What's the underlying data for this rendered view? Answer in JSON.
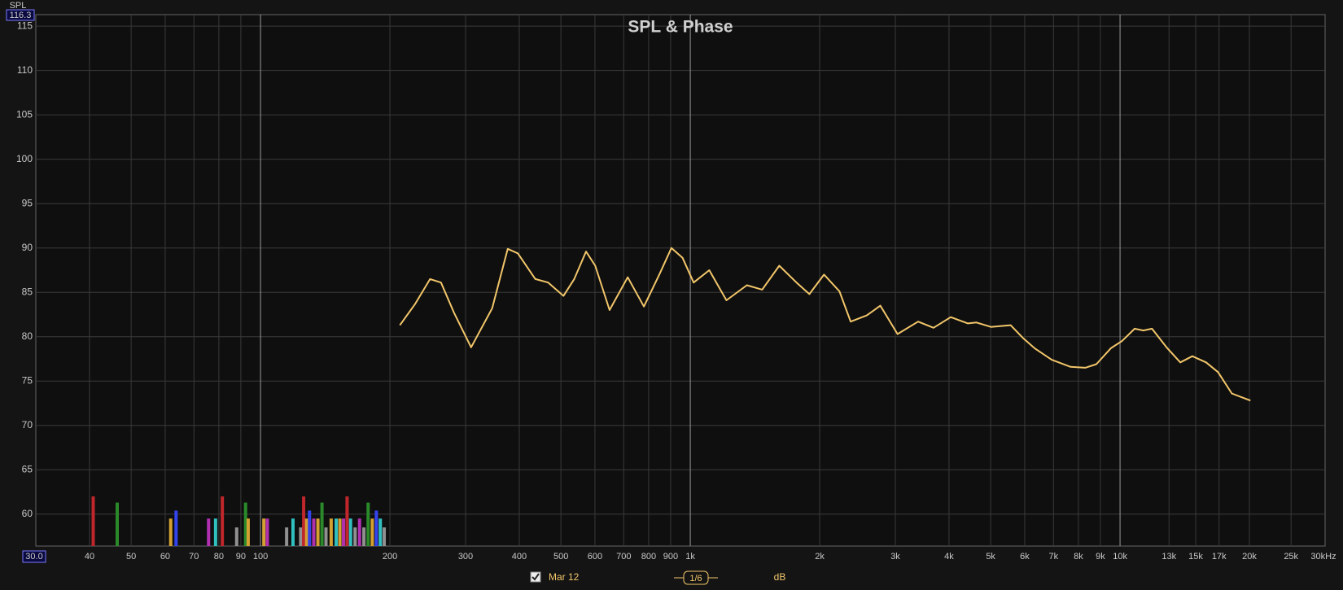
{
  "chart_data": {
    "type": "line",
    "title": "SPL & Phase",
    "y_axis_label": "SPL",
    "log_x": true,
    "grid": true,
    "xlim": [
      30,
      30000
    ],
    "ylim": [
      56.4,
      116.3
    ],
    "xticks": [
      {
        "value": 30,
        "label": "30.0"
      },
      40,
      50,
      60,
      70,
      80,
      90,
      100,
      200,
      300,
      400,
      500,
      600,
      700,
      800,
      900,
      {
        "value": 1000,
        "label": "1k"
      },
      {
        "value": 2000,
        "label": "2k"
      },
      {
        "value": 3000,
        "label": "3k"
      },
      {
        "value": 4000,
        "label": "4k"
      },
      {
        "value": 5000,
        "label": "5k"
      },
      {
        "value": 6000,
        "label": "6k"
      },
      {
        "value": 7000,
        "label": "7k"
      },
      {
        "value": 8000,
        "label": "8k"
      },
      {
        "value": 9000,
        "label": "9k"
      },
      {
        "value": 10000,
        "label": "10k"
      },
      {
        "value": 13000,
        "label": "13k"
      },
      {
        "value": 15000,
        "label": "15k"
      },
      {
        "value": 17000,
        "label": "17k"
      },
      {
        "value": 20000,
        "label": "20k"
      },
      {
        "value": 25000,
        "label": "25k"
      },
      {
        "value": 30000,
        "label": "30kHz"
      }
    ],
    "yticks": [
      60,
      65,
      70,
      75,
      80,
      85,
      90,
      95,
      100,
      105,
      110,
      115
    ],
    "series": [
      {
        "name": "Mar 12",
        "color": "#f2c66a",
        "x": [
          211,
          229,
          248,
          263,
          282,
          309,
          346,
          376,
          397,
          436,
          467,
          507,
          537,
          572,
          601,
          649,
          715,
          780,
          847,
          904,
          959,
          1018,
          1107,
          1214,
          1354,
          1470,
          1611,
          1767,
          1893,
          2047,
          2224,
          2361,
          2574,
          2769,
          3036,
          3390,
          3681,
          4037,
          4424,
          4634,
          5006,
          5562,
          5961,
          6327,
          6934,
          7671,
          8297,
          8809,
          9520,
          10099,
          10818,
          11329,
          11865,
          12829,
          13809,
          14732,
          15858,
          16908,
          18200,
          20112
        ],
        "values": [
          81.3,
          83.7,
          86.5,
          86.1,
          82.7,
          78.8,
          83.2,
          89.9,
          89.4,
          86.5,
          86.1,
          84.6,
          86.5,
          89.6,
          88.0,
          83.0,
          86.7,
          83.4,
          87.0,
          90.0,
          88.9,
          86.1,
          87.5,
          84.1,
          85.8,
          85.3,
          88.0,
          86.1,
          84.8,
          87.0,
          85.1,
          81.7,
          82.4,
          83.5,
          80.3,
          81.7,
          81.0,
          82.2,
          81.5,
          81.6,
          81.1,
          81.3,
          79.8,
          78.7,
          77.4,
          76.6,
          76.5,
          76.9,
          78.7,
          79.5,
          80.9,
          80.7,
          80.9,
          78.8,
          77.1,
          77.8,
          77.1,
          76.0,
          73.6,
          72.8
        ]
      }
    ],
    "bars": {
      "x": [
        40.8,
        46.4,
        61.8,
        63.6,
        75.7,
        78.6,
        81.5,
        88,
        92.3,
        93.6,
        101.8,
        103.7,
        115,
        119,
        124,
        126,
        128,
        130,
        133,
        136,
        139,
        142,
        146,
        150,
        153,
        156,
        159,
        162,
        166,
        170,
        174,
        178,
        182,
        186,
        190,
        194
      ],
      "values": [
        62,
        61.3,
        59.5,
        60.4,
        59.5,
        59.5,
        62,
        58.5,
        61.3,
        59.5,
        59.5,
        59.5,
        58.5,
        59.5,
        58.5,
        62,
        59.5,
        60.4,
        59.5,
        59.5,
        61.3,
        58.5,
        59.5,
        59.5,
        59.5,
        59.5,
        62,
        59.5,
        58.5,
        59.5,
        58.5,
        61.3,
        59.5,
        60.4,
        59.5,
        58.5
      ],
      "colors": [
        "#c0262b",
        "#2a8a2a",
        "#d4a032",
        "#3344ee",
        "#b030b0",
        "#30c0c0",
        "#c0262b",
        "#909090",
        "#2a8a2a",
        "#d4a032",
        "#d4a032",
        "#b030b0",
        "#909090",
        "#30c0c0",
        "#909090",
        "#c0262b",
        "#d4a032",
        "#3344ee",
        "#b030b0",
        "#d4a032",
        "#2a8a2a",
        "#909090",
        "#d4a032",
        "#30c0c0",
        "#d4a032",
        "#b030b0",
        "#c0262b",
        "#30c0c0",
        "#909090",
        "#b030b0",
        "#909090",
        "#2a8a2a",
        "#d4a032",
        "#3344ee",
        "#30c0c0",
        "#909090"
      ]
    },
    "controls": {
      "smoothing": "1/6",
      "units": "dB"
    }
  }
}
